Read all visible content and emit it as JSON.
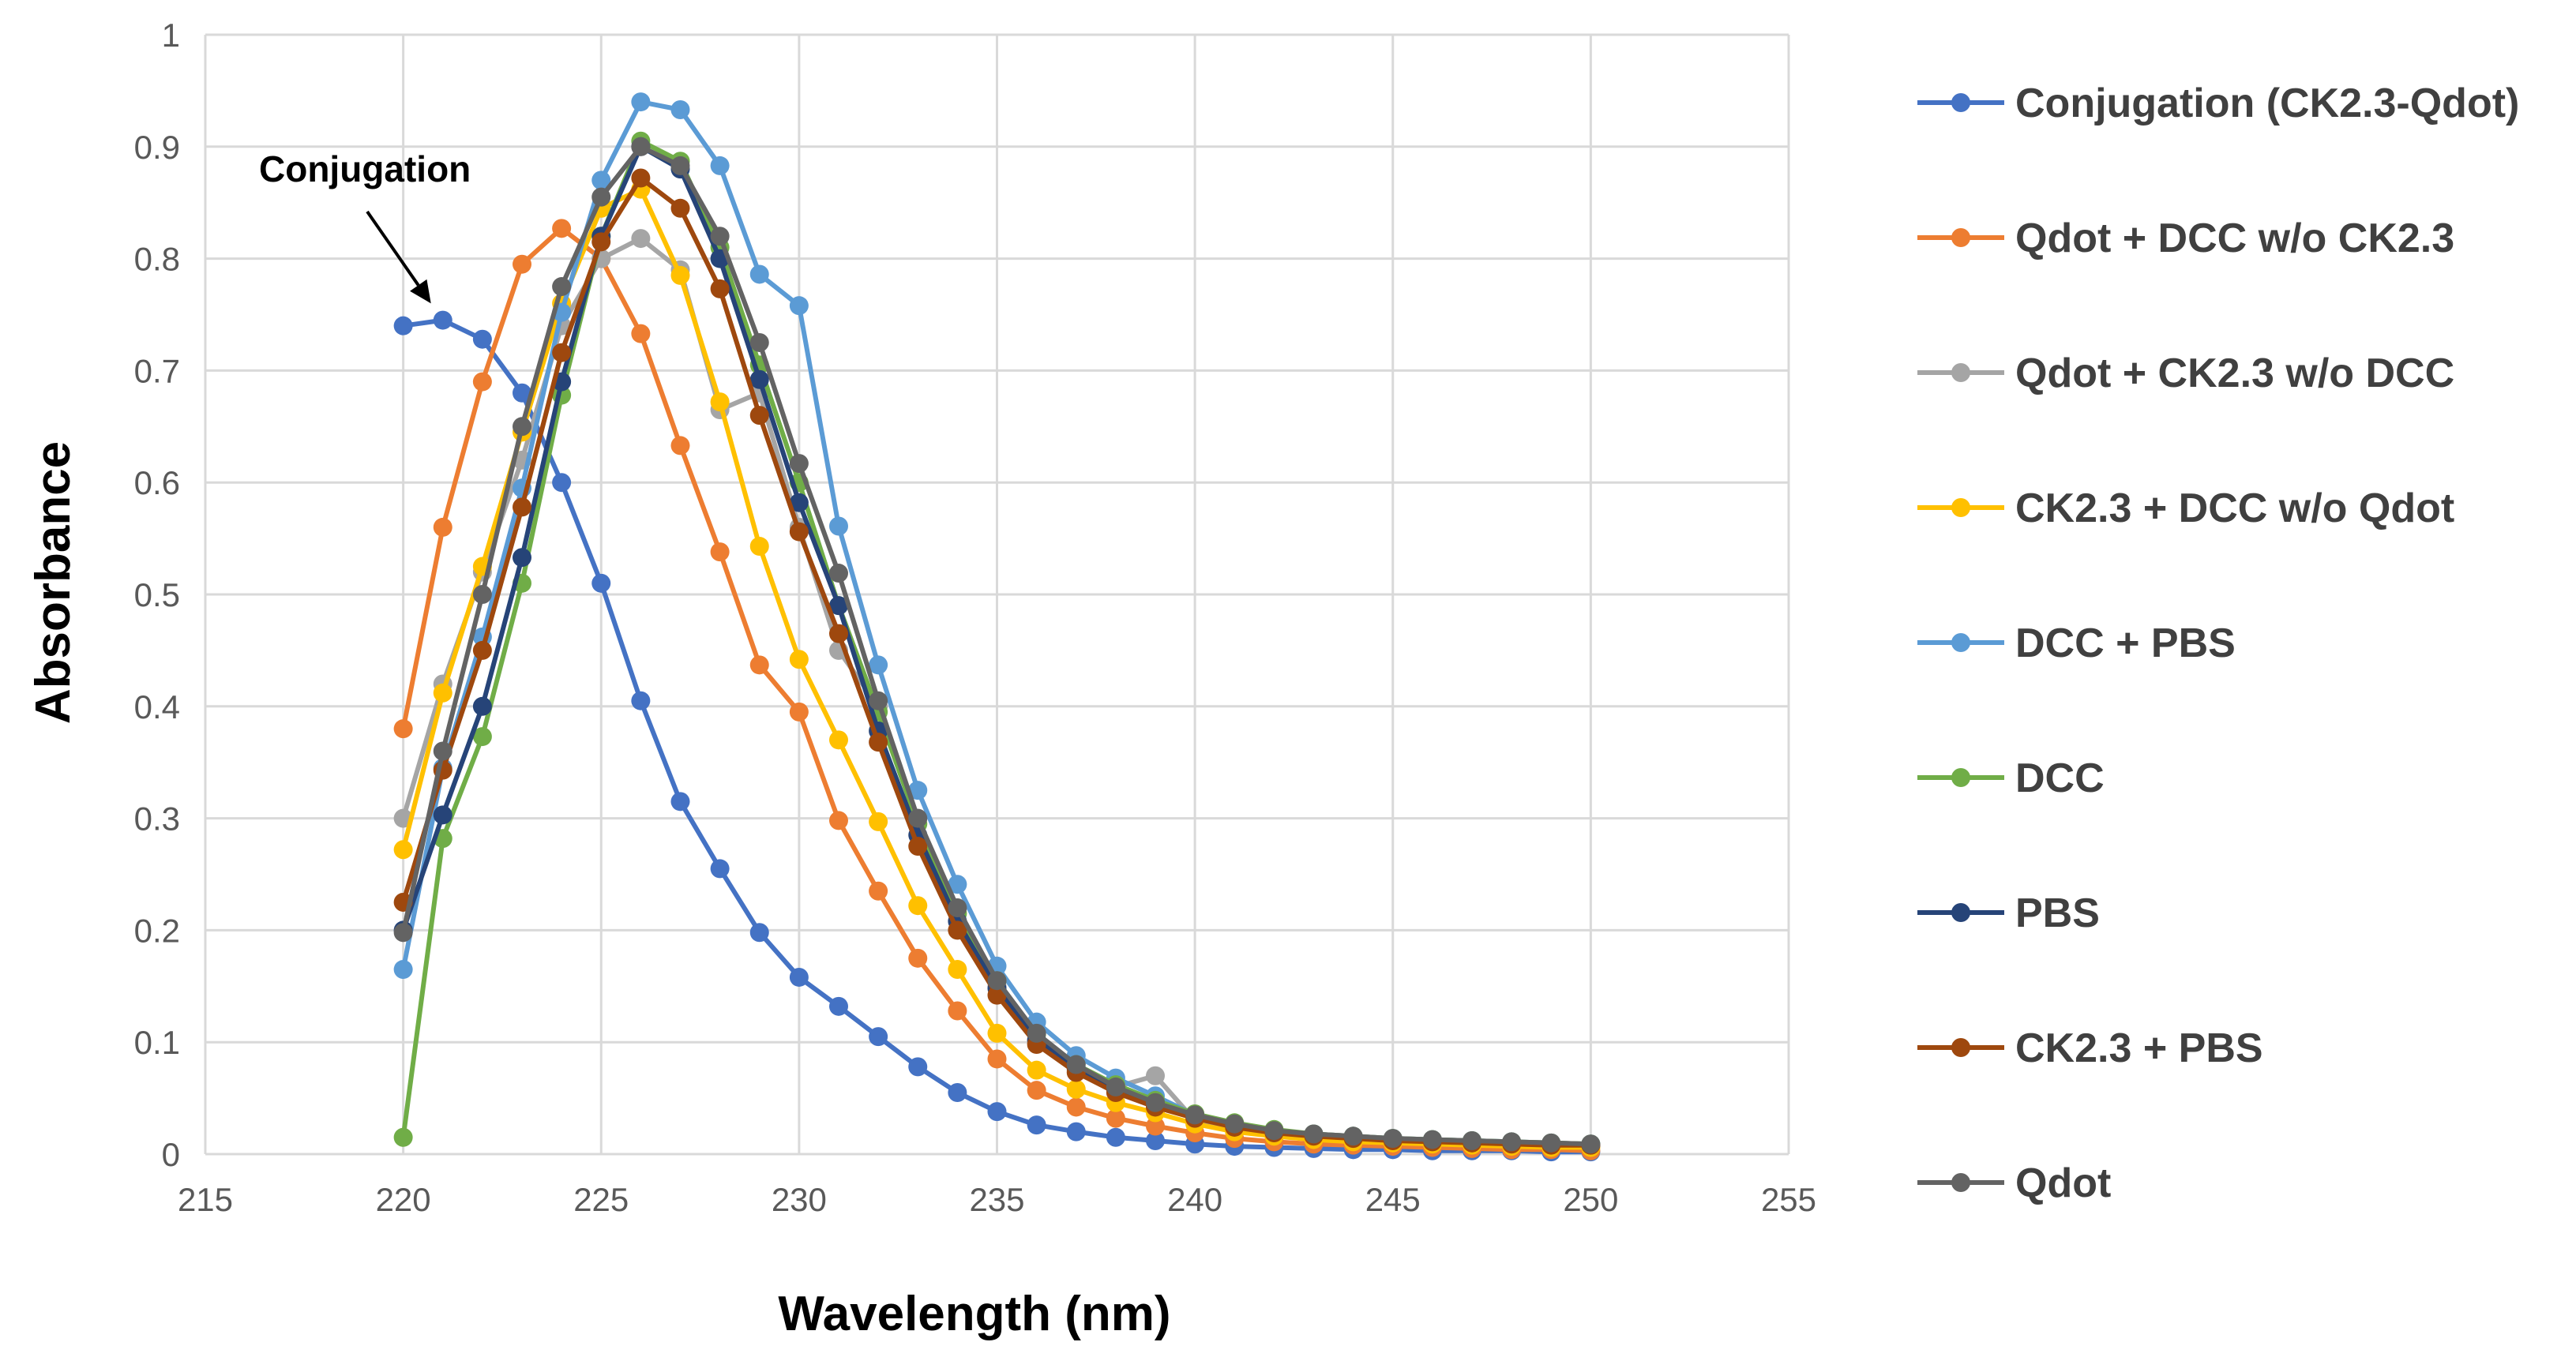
{
  "chart_data": {
    "type": "line",
    "title": "",
    "xlabel": "Wavelength  (nm)",
    "ylabel": "Absorbance",
    "xlim": [
      215,
      255
    ],
    "ylim": [
      0,
      1
    ],
    "x_ticks": [
      215,
      220,
      225,
      230,
      235,
      240,
      245,
      250,
      255
    ],
    "x_tick_labels": [
      "215",
      "220",
      "225",
      "230",
      "235",
      "240",
      "245",
      "250",
      "255"
    ],
    "y_ticks": [
      0,
      0.1,
      0.2,
      0.3,
      0.4,
      0.5,
      0.6,
      0.7,
      0.8,
      0.9,
      1
    ],
    "y_tick_labels": [
      "0",
      "0.1",
      "0.2",
      "0.3",
      "0.4",
      "0.5",
      "0.6",
      "0.7",
      "0.8",
      "0.9",
      "1"
    ],
    "grid": true,
    "legend_position": "right",
    "x": [
      220,
      221,
      222,
      223,
      224,
      225,
      226,
      227,
      228,
      229,
      230,
      231,
      232,
      233,
      234,
      235,
      236,
      237,
      238,
      239,
      240,
      241,
      242,
      243,
      244,
      245,
      246,
      247,
      248,
      249,
      250
    ],
    "annotation": {
      "text": "Conjugation",
      "arrow_to": [
        220.7,
        0.76
      ]
    },
    "series": [
      {
        "name": "Conjugation (CK2.3-Qdot)",
        "color": "#4472C4",
        "values": [
          0.74,
          0.745,
          0.728,
          0.68,
          0.6,
          0.51,
          0.405,
          0.315,
          0.255,
          0.198,
          0.158,
          0.132,
          0.105,
          0.078,
          0.055,
          0.038,
          0.026,
          0.02,
          0.015,
          0.012,
          0.009,
          0.007,
          0.006,
          0.005,
          0.004,
          0.004,
          0.003,
          0.003,
          0.003,
          0.002,
          0.002
        ]
      },
      {
        "name": "Qdot + DCC w/o CK2.3",
        "color": "#ED7D31",
        "values": [
          0.38,
          0.56,
          0.69,
          0.795,
          0.827,
          0.8,
          0.733,
          0.633,
          0.538,
          0.437,
          0.395,
          0.298,
          0.235,
          0.175,
          0.128,
          0.085,
          0.057,
          0.042,
          0.032,
          0.025,
          0.019,
          0.014,
          0.011,
          0.009,
          0.008,
          0.007,
          0.006,
          0.005,
          0.004,
          0.004,
          0.003
        ]
      },
      {
        "name": "Qdot + CK2.3 w/o DCC",
        "color": "#A5A5A5",
        "values": [
          0.3,
          0.42,
          0.52,
          0.62,
          0.74,
          0.8,
          0.818,
          0.79,
          0.665,
          0.68,
          0.56,
          0.45,
          0.4,
          0.3,
          0.22,
          0.15,
          0.1,
          0.075,
          0.06,
          0.07,
          0.03,
          0.022,
          0.017,
          0.014,
          0.012,
          0.011,
          0.01,
          0.009,
          0.008,
          0.007,
          0.007
        ]
      },
      {
        "name": "CK2.3 + DCC w/o Qdot",
        "color": "#FFC000",
        "values": [
          0.272,
          0.412,
          0.525,
          0.645,
          0.76,
          0.845,
          0.862,
          0.785,
          0.672,
          0.543,
          0.442,
          0.37,
          0.297,
          0.222,
          0.165,
          0.108,
          0.075,
          0.058,
          0.046,
          0.037,
          0.027,
          0.02,
          0.016,
          0.013,
          0.011,
          0.01,
          0.009,
          0.008,
          0.007,
          0.006,
          0.006
        ]
      },
      {
        "name": "DCC + PBS",
        "color": "#5B9BD5",
        "values": [
          0.165,
          0.345,
          0.462,
          0.595,
          0.752,
          0.87,
          0.94,
          0.933,
          0.883,
          0.786,
          0.758,
          0.561,
          0.437,
          0.325,
          0.241,
          0.168,
          0.118,
          0.088,
          0.068,
          0.052,
          0.035,
          0.027,
          0.021,
          0.018,
          0.016,
          0.014,
          0.013,
          0.012,
          0.011,
          0.01,
          0.009
        ]
      },
      {
        "name": "DCC",
        "color": "#70AD47",
        "values": [
          0.015,
          0.282,
          0.373,
          0.51,
          0.678,
          0.82,
          0.905,
          0.887,
          0.81,
          0.705,
          0.6,
          0.49,
          0.395,
          0.295,
          0.215,
          0.155,
          0.107,
          0.08,
          0.062,
          0.048,
          0.036,
          0.028,
          0.022,
          0.018,
          0.016,
          0.014,
          0.013,
          0.012,
          0.011,
          0.01,
          0.009
        ]
      },
      {
        "name": "PBS",
        "color": "#264478",
        "values": [
          0.2,
          0.303,
          0.4,
          0.533,
          0.69,
          0.82,
          0.9,
          0.88,
          0.8,
          0.692,
          0.582,
          0.49,
          0.378,
          0.285,
          0.208,
          0.148,
          0.102,
          0.077,
          0.058,
          0.045,
          0.034,
          0.026,
          0.02,
          0.017,
          0.015,
          0.013,
          0.012,
          0.011,
          0.01,
          0.009,
          0.008
        ]
      },
      {
        "name": "CK2.3 + PBS",
        "color": "#9E480E",
        "values": [
          0.225,
          0.343,
          0.45,
          0.578,
          0.716,
          0.815,
          0.872,
          0.845,
          0.773,
          0.66,
          0.556,
          0.465,
          0.368,
          0.275,
          0.2,
          0.142,
          0.098,
          0.073,
          0.055,
          0.042,
          0.032,
          0.024,
          0.019,
          0.016,
          0.014,
          0.012,
          0.011,
          0.01,
          0.009,
          0.008,
          0.008
        ]
      },
      {
        "name": "Qdot",
        "color": "#636363",
        "values": [
          0.198,
          0.36,
          0.5,
          0.65,
          0.775,
          0.855,
          0.9,
          0.883,
          0.82,
          0.725,
          0.617,
          0.519,
          0.405,
          0.3,
          0.22,
          0.155,
          0.108,
          0.08,
          0.06,
          0.046,
          0.035,
          0.027,
          0.021,
          0.018,
          0.016,
          0.014,
          0.013,
          0.012,
          0.011,
          0.01,
          0.009
        ]
      }
    ]
  }
}
